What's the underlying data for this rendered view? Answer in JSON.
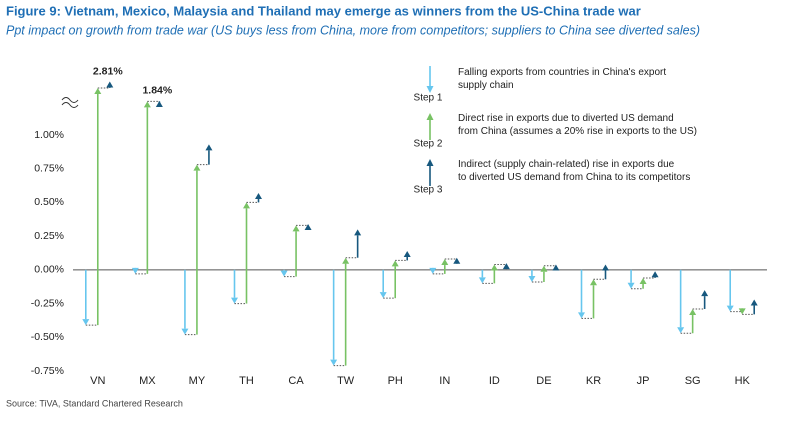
{
  "chart_data": {
    "type": "arrow-waterfall",
    "title": "Figure 9: Vietnam, Mexico, Malaysia and Thailand may emerge as winners from the US-China trade war",
    "subtitle": "Ppt impact on growth from trade war (US buys less from China, more from competitors; suppliers to China see diverted sales)",
    "source": "Source: TiVA, Standard Chartered Research",
    "categories": [
      "VN",
      "MX",
      "MY",
      "TH",
      "CA",
      "TW",
      "PH",
      "IN",
      "ID",
      "DE",
      "KR",
      "JP",
      "SG",
      "HK"
    ],
    "series": [
      {
        "name": "Step 1",
        "description": "Falling exports from countries in China's export supply chain",
        "color": "#66c6ee",
        "values": [
          -0.41,
          -0.03,
          -0.48,
          -0.25,
          -0.05,
          -0.71,
          -0.21,
          -0.03,
          -0.1,
          -0.09,
          -0.36,
          -0.14,
          -0.47,
          -0.31
        ]
      },
      {
        "name": "Step 2",
        "description": "Direct rise in exports due to diverted US demand from China (assumes a 20% rise in exports to the US)",
        "color": "#78c264",
        "values": [
          2.9,
          1.85,
          1.26,
          0.75,
          0.38,
          0.8,
          0.28,
          0.11,
          0.14,
          0.12,
          0.29,
          0.08,
          0.18,
          -0.02
        ]
      },
      {
        "name": "Step 3",
        "description": "Indirect (supply chain-related) rise in exports due to diverted US demand from China to its competitors",
        "color": "#17587e",
        "values": [
          0.32,
          0.02,
          0.15,
          0.07,
          0.01,
          0.21,
          0.07,
          0.01,
          0.01,
          0.01,
          0.11,
          0.05,
          0.14,
          0.11
        ]
      }
    ],
    "annotations": [
      {
        "category": "VN",
        "value": 2.81,
        "label": "2.81%"
      },
      {
        "category": "MX",
        "value": 1.84,
        "label": "1.84%"
      }
    ],
    "ylim": [
      -0.75,
      1.15
    ],
    "axis_break": 1.15,
    "yticks": [
      {
        "value": -0.75,
        "label": "-0.75%"
      },
      {
        "value": -0.5,
        "label": "-0.50%"
      },
      {
        "value": -0.25,
        "label": "-0.25%"
      },
      {
        "value": 0,
        "label": "0.00%"
      },
      {
        "value": 0.25,
        "label": "0.25%"
      },
      {
        "value": 0.5,
        "label": "0.50%"
      },
      {
        "value": 0.75,
        "label": "0.75%"
      },
      {
        "value": 1,
        "label": "1.00%"
      }
    ]
  }
}
